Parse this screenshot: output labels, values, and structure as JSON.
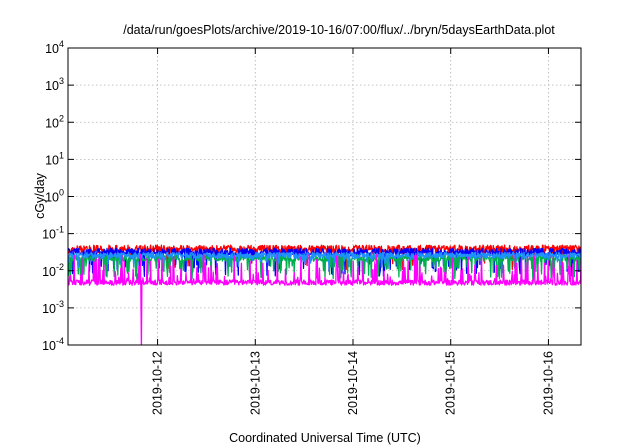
{
  "chart_data": {
    "type": "line",
    "title": "/data/run/goesPlots/archive/2019-10-16/07:00/flux/../bryn/5daysEarthData.plot",
    "xlabel": "Coordinated Universal Time (UTC)",
    "ylabel": "cGy/day",
    "x_start": "2019-10-11T02:00",
    "x_end": "2019-10-16T08:00",
    "x_ticks": [
      "2019-10-12",
      "2019-10-13",
      "2019-10-14",
      "2019-10-15",
      "2019-10-16"
    ],
    "y_scale": "log",
    "ylim": [
      0.0001,
      10000
    ],
    "y_ticks": [
      {
        "base": "10",
        "exp": "-4",
        "value": 0.0001
      },
      {
        "base": "10",
        "exp": "-3",
        "value": 0.001
      },
      {
        "base": "10",
        "exp": "-2",
        "value": 0.01
      },
      {
        "base": "10",
        "exp": "-1",
        "value": 0.1
      },
      {
        "base": "10",
        "exp": "0",
        "value": 1
      },
      {
        "base": "10",
        "exp": "1",
        "value": 10
      },
      {
        "base": "10",
        "exp": "2",
        "value": 100
      },
      {
        "base": "10",
        "exp": "3",
        "value": 1000
      },
      {
        "base": "10",
        "exp": "4",
        "value": 10000
      }
    ],
    "grid": true,
    "series": [
      {
        "color": "#ff0000",
        "base": 0.038,
        "spread": 0.11,
        "dip_prob": 0.04,
        "dip_min": 0.01
      },
      {
        "color": "#0000ff",
        "base": 0.032,
        "spread": 0.1,
        "dip_prob": 0.1,
        "dip_min": 0.007
      },
      {
        "color": "#00b050",
        "base": 0.022,
        "spread": 0.09,
        "dip_prob": 0.12,
        "dip_min": 0.006
      },
      {
        "color": "#1e90ff",
        "base": 0.026,
        "spread": 0.08,
        "dip_prob": 0.05,
        "dip_min": 0.012
      },
      {
        "color": "#ff00ff",
        "base": 0.0048,
        "spread": 0.07,
        "spike_prob": 0.18,
        "spike_max": 0.028,
        "outlier": {
          "x": "2019-10-11T20:00",
          "y": 0.0001
        }
      }
    ]
  }
}
